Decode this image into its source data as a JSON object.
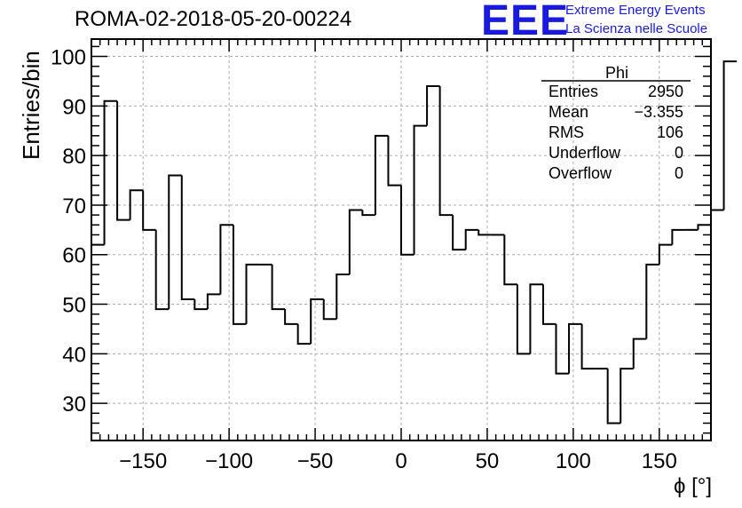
{
  "header": {
    "title": "ROMA-02-2018-05-20-00224",
    "logo_text": "EEE",
    "logo_line1": "Extreme Energy Events",
    "logo_line2": "La Scienza nelle Scuole"
  },
  "colors": {
    "logo": "#1a1adf",
    "line": "#000000",
    "grid": "#aaaaaa"
  },
  "stats": {
    "title": "Phi",
    "rows": [
      {
        "key": "Entries",
        "value": "2950"
      },
      {
        "key": "Mean",
        "value": "−3.355"
      },
      {
        "key": "RMS",
        "value": "106"
      },
      {
        "key": "Underflow",
        "value": "0"
      },
      {
        "key": "Overflow",
        "value": "0"
      }
    ]
  },
  "chart_data": {
    "type": "histogram",
    "xlabel": "ϕ [°]",
    "ylabel": "Entries/bin",
    "xlim": [
      -180,
      180
    ],
    "ylim": [
      22.5,
      103.5
    ],
    "grid": true,
    "bin_edges_start": -180,
    "bin_width": 7.5,
    "values": [
      62,
      91,
      67,
      73,
      65,
      49,
      76,
      51,
      49,
      52,
      66,
      46,
      58,
      58,
      49,
      46,
      42,
      51,
      47,
      56,
      69,
      68,
      84,
      74,
      60,
      86,
      94,
      68,
      61,
      65,
      64,
      64,
      54,
      40,
      54,
      46,
      36,
      46,
      37,
      37,
      26,
      37,
      43,
      58,
      62,
      65,
      65,
      66,
      69,
      99
    ],
    "xticks": [
      -150,
      -100,
      -50,
      0,
      50,
      100,
      150
    ],
    "xtick_labels": [
      "−150",
      "−100",
      "−50",
      "0",
      "50",
      "100",
      "150"
    ],
    "yticks": [
      30,
      40,
      50,
      60,
      70,
      80,
      90,
      100
    ],
    "ytick_labels": [
      "30",
      "40",
      "50",
      "60",
      "70",
      "80",
      "90",
      "100"
    ]
  }
}
